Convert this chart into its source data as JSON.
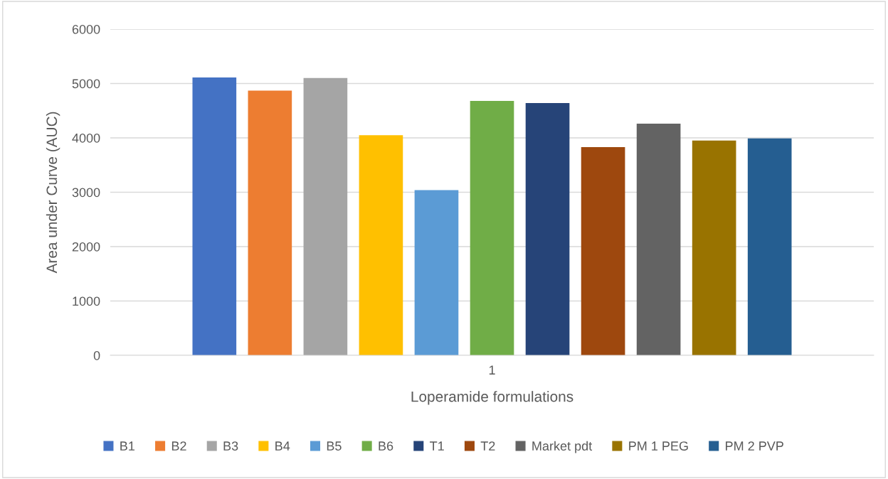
{
  "chart_data": {
    "type": "bar",
    "xlabel": "Loperamide formulations",
    "ylabel": "Area under Curve (AUC)",
    "categories": [
      "1"
    ],
    "series": [
      {
        "name": "B1",
        "color": "#4472c4",
        "values": [
          5110
        ]
      },
      {
        "name": "B2",
        "color": "#ed7d31",
        "values": [
          4870
        ]
      },
      {
        "name": "B3",
        "color": "#a5a5a5",
        "values": [
          5100
        ]
      },
      {
        "name": "B4",
        "color": "#ffc000",
        "values": [
          4050
        ]
      },
      {
        "name": "B5",
        "color": "#5b9bd5",
        "values": [
          3040
        ]
      },
      {
        "name": "B6",
        "color": "#70ad47",
        "values": [
          4680
        ]
      },
      {
        "name": "T1",
        "color": "#264478",
        "values": [
          4640
        ]
      },
      {
        "name": "T2",
        "color": "#9e480e",
        "values": [
          3830
        ]
      },
      {
        "name": "Market pdt",
        "color": "#636363",
        "values": [
          4260
        ]
      },
      {
        "name": "PM 1 PEG",
        "color": "#997300",
        "values": [
          3950
        ]
      },
      {
        "name": "PM 2 PVP",
        "color": "#255e91",
        "values": [
          3990
        ]
      }
    ],
    "ylim": [
      0,
      6000
    ],
    "yticks": [
      0,
      1000,
      2000,
      3000,
      4000,
      5000,
      6000
    ],
    "grid": "y",
    "legend": "bottom"
  }
}
